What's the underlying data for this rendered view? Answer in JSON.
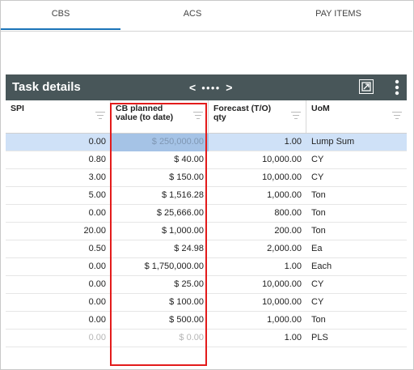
{
  "tabs": [
    {
      "label": "CBS",
      "active": true
    },
    {
      "label": "ACS",
      "active": false
    },
    {
      "label": "PAY ITEMS",
      "active": false
    }
  ],
  "toolbar": {
    "title": "Task details",
    "pager_prev": "<",
    "pager_dots": "●●●●",
    "pager_next": ">",
    "export_icon": "export-icon",
    "more_icon": "more-vertical-icon"
  },
  "columns": [
    {
      "label": "SPI"
    },
    {
      "label": "CB planned\nvalue (to date)"
    },
    {
      "label": "Forecast (T/O)\nqty"
    },
    {
      "label": "UoM"
    }
  ],
  "rows": [
    {
      "spi": "0.00",
      "cb": "$ 250,000.00",
      "forecast": "1.00",
      "uom": "Lump Sum",
      "state": "selected"
    },
    {
      "spi": "0.80",
      "cb": "$ 40.00",
      "forecast": "10,000.00",
      "uom": "CY"
    },
    {
      "spi": "3.00",
      "cb": "$ 150.00",
      "forecast": "10,000.00",
      "uom": "CY"
    },
    {
      "spi": "5.00",
      "cb": "$ 1,516.28",
      "forecast": "1,000.00",
      "uom": "Ton"
    },
    {
      "spi": "0.00",
      "cb": "$ 25,666.00",
      "forecast": "800.00",
      "uom": "Ton"
    },
    {
      "spi": "20.00",
      "cb": "$ 1,000.00",
      "forecast": "200.00",
      "uom": "Ton"
    },
    {
      "spi": "0.50",
      "cb": "$ 24.98",
      "forecast": "2,000.00",
      "uom": "Ea"
    },
    {
      "spi": "0.00",
      "cb": "$ 1,750,000.00",
      "forecast": "1.00",
      "uom": "Each"
    },
    {
      "spi": "0.00",
      "cb": "$ 25.00",
      "forecast": "10,000.00",
      "uom": "CY"
    },
    {
      "spi": "0.00",
      "cb": "$ 100.00",
      "forecast": "10,000.00",
      "uom": "CY"
    },
    {
      "spi": "0.00",
      "cb": "$ 500.00",
      "forecast": "1,000.00",
      "uom": "Ton"
    },
    {
      "spi": "0.00",
      "cb": "$ 0.00",
      "forecast": "1.00",
      "uom": "PLS",
      "state": "faded"
    }
  ],
  "colors": {
    "toolbar_bg": "#485659",
    "active_tab": "#1a73b8",
    "selected_row": "#cfe1f7",
    "highlight_border": "#e31b1b"
  }
}
